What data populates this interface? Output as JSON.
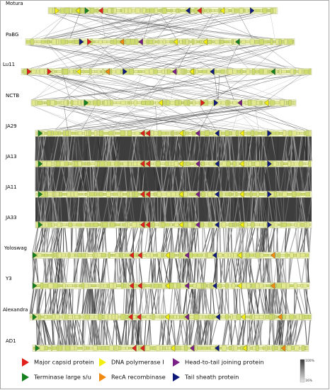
{
  "genomes": [
    {
      "label": "Motura",
      "markers": [
        {
          "pos": 0.03,
          "color": "yellow",
          "dir": "right"
        },
        {
          "pos": 0.12,
          "color": "yellow",
          "dir": "left"
        },
        {
          "pos": 0.16,
          "color": "green",
          "dir": "right"
        },
        {
          "pos": 0.22,
          "color": "red",
          "dir": "left"
        },
        {
          "pos": 0.6,
          "color": "navy",
          "dir": "left"
        },
        {
          "pos": 0.65,
          "color": "red",
          "dir": "left"
        },
        {
          "pos": 0.75,
          "color": "yellow",
          "dir": "left"
        },
        {
          "pos": 0.88,
          "color": "navy",
          "dir": "right"
        }
      ]
    },
    {
      "label": "PaBG",
      "markers": [
        {
          "pos": 0.2,
          "color": "navy",
          "dir": "right"
        },
        {
          "pos": 0.23,
          "color": "red",
          "dir": "right"
        },
        {
          "pos": 0.35,
          "color": "orange",
          "dir": "left"
        },
        {
          "pos": 0.42,
          "color": "purple",
          "dir": "left"
        },
        {
          "pos": 0.55,
          "color": "yellow",
          "dir": "left"
        },
        {
          "pos": 0.66,
          "color": "yellow",
          "dir": "left"
        },
        {
          "pos": 0.78,
          "color": "green",
          "dir": "left"
        }
      ]
    },
    {
      "label": "Lu11",
      "markers": [
        {
          "pos": 0.02,
          "color": "red",
          "dir": "right"
        },
        {
          "pos": 0.09,
          "color": "red",
          "dir": "right"
        },
        {
          "pos": 0.19,
          "color": "yellow",
          "dir": "left"
        },
        {
          "pos": 0.29,
          "color": "orange",
          "dir": "left"
        },
        {
          "pos": 0.35,
          "color": "navy",
          "dir": "right"
        },
        {
          "pos": 0.52,
          "color": "purple",
          "dir": "left"
        },
        {
          "pos": 0.58,
          "color": "yellow",
          "dir": "left"
        },
        {
          "pos": 0.65,
          "color": "navy",
          "dir": "left"
        },
        {
          "pos": 0.86,
          "color": "green",
          "dir": "left"
        }
      ]
    },
    {
      "label": "NCTB",
      "markers": [
        {
          "pos": 0.2,
          "color": "green",
          "dir": "right"
        },
        {
          "pos": 0.48,
          "color": "yellow",
          "dir": "left"
        },
        {
          "pos": 0.64,
          "color": "red",
          "dir": "right"
        },
        {
          "pos": 0.69,
          "color": "navy",
          "dir": "right"
        },
        {
          "pos": 0.78,
          "color": "purple",
          "dir": "left"
        },
        {
          "pos": 0.88,
          "color": "yellow",
          "dir": "left"
        }
      ]
    },
    {
      "label": "JA29",
      "markers": [
        {
          "pos": 0.01,
          "color": "green",
          "dir": "right"
        },
        {
          "pos": 0.38,
          "color": "red",
          "dir": "left"
        },
        {
          "pos": 0.4,
          "color": "red",
          "dir": "left"
        },
        {
          "pos": 0.52,
          "color": "yellow",
          "dir": "left"
        },
        {
          "pos": 0.58,
          "color": "purple",
          "dir": "left"
        },
        {
          "pos": 0.65,
          "color": "navy",
          "dir": "left"
        },
        {
          "pos": 0.74,
          "color": "yellow",
          "dir": "left"
        },
        {
          "pos": 0.84,
          "color": "navy",
          "dir": "right"
        }
      ]
    },
    {
      "label": "JA13",
      "markers": [
        {
          "pos": 0.01,
          "color": "green",
          "dir": "right"
        },
        {
          "pos": 0.38,
          "color": "red",
          "dir": "left"
        },
        {
          "pos": 0.4,
          "color": "red",
          "dir": "left"
        },
        {
          "pos": 0.52,
          "color": "yellow",
          "dir": "left"
        },
        {
          "pos": 0.58,
          "color": "purple",
          "dir": "left"
        },
        {
          "pos": 0.65,
          "color": "navy",
          "dir": "left"
        },
        {
          "pos": 0.74,
          "color": "yellow",
          "dir": "left"
        },
        {
          "pos": 0.84,
          "color": "navy",
          "dir": "right"
        }
      ]
    },
    {
      "label": "JA11",
      "markers": [
        {
          "pos": 0.01,
          "color": "green",
          "dir": "right"
        },
        {
          "pos": 0.38,
          "color": "red",
          "dir": "left"
        },
        {
          "pos": 0.4,
          "color": "red",
          "dir": "left"
        },
        {
          "pos": 0.52,
          "color": "yellow",
          "dir": "left"
        },
        {
          "pos": 0.58,
          "color": "purple",
          "dir": "left"
        },
        {
          "pos": 0.65,
          "color": "navy",
          "dir": "left"
        },
        {
          "pos": 0.74,
          "color": "yellow",
          "dir": "left"
        },
        {
          "pos": 0.84,
          "color": "navy",
          "dir": "right"
        }
      ]
    },
    {
      "label": "JA33",
      "markers": [
        {
          "pos": 0.01,
          "color": "green",
          "dir": "right"
        },
        {
          "pos": 0.38,
          "color": "red",
          "dir": "left"
        },
        {
          "pos": 0.4,
          "color": "red",
          "dir": "left"
        },
        {
          "pos": 0.52,
          "color": "yellow",
          "dir": "left"
        },
        {
          "pos": 0.58,
          "color": "purple",
          "dir": "left"
        },
        {
          "pos": 0.65,
          "color": "navy",
          "dir": "left"
        },
        {
          "pos": 0.74,
          "color": "yellow",
          "dir": "left"
        },
        {
          "pos": 0.84,
          "color": "navy",
          "dir": "right"
        }
      ]
    },
    {
      "label": "Yoloswag",
      "markers": [
        {
          "pos": 0.0,
          "color": "green",
          "dir": "right"
        },
        {
          "pos": 0.35,
          "color": "red",
          "dir": "left"
        },
        {
          "pos": 0.38,
          "color": "red",
          "dir": "left"
        },
        {
          "pos": 0.48,
          "color": "yellow",
          "dir": "left"
        },
        {
          "pos": 0.55,
          "color": "purple",
          "dir": "left"
        },
        {
          "pos": 0.65,
          "color": "navy",
          "dir": "left"
        },
        {
          "pos": 0.74,
          "color": "yellow",
          "dir": "left"
        },
        {
          "pos": 0.86,
          "color": "orange",
          "dir": "left"
        }
      ]
    },
    {
      "label": "Y3",
      "markers": [
        {
          "pos": 0.0,
          "color": "green",
          "dir": "right"
        },
        {
          "pos": 0.35,
          "color": "red",
          "dir": "left"
        },
        {
          "pos": 0.38,
          "color": "red",
          "dir": "left"
        },
        {
          "pos": 0.48,
          "color": "yellow",
          "dir": "left"
        },
        {
          "pos": 0.55,
          "color": "purple",
          "dir": "left"
        },
        {
          "pos": 0.65,
          "color": "navy",
          "dir": "left"
        },
        {
          "pos": 0.74,
          "color": "yellow",
          "dir": "left"
        },
        {
          "pos": 0.86,
          "color": "orange",
          "dir": "left"
        }
      ]
    },
    {
      "label": "Alexandra",
      "markers": [
        {
          "pos": 0.01,
          "color": "green",
          "dir": "right"
        },
        {
          "pos": 0.35,
          "color": "red",
          "dir": "left"
        },
        {
          "pos": 0.38,
          "color": "red",
          "dir": "left"
        },
        {
          "pos": 0.48,
          "color": "yellow",
          "dir": "left"
        },
        {
          "pos": 0.55,
          "color": "purple",
          "dir": "left"
        },
        {
          "pos": 0.66,
          "color": "navy",
          "dir": "left"
        },
        {
          "pos": 0.75,
          "color": "yellow",
          "dir": "left"
        },
        {
          "pos": 0.88,
          "color": "orange",
          "dir": "left"
        }
      ]
    },
    {
      "label": "AD1",
      "markers": [
        {
          "pos": 0.01,
          "color": "green",
          "dir": "right"
        },
        {
          "pos": 0.36,
          "color": "red",
          "dir": "left"
        },
        {
          "pos": 0.39,
          "color": "red",
          "dir": "left"
        },
        {
          "pos": 0.5,
          "color": "yellow",
          "dir": "left"
        },
        {
          "pos": 0.57,
          "color": "purple",
          "dir": "left"
        },
        {
          "pos": 0.66,
          "color": "navy",
          "dir": "left"
        },
        {
          "pos": 0.76,
          "color": "yellow",
          "dir": "left"
        },
        {
          "pos": 0.9,
          "color": "orange",
          "dir": "left"
        }
      ]
    }
  ],
  "legend": [
    {
      "label": "Major capsid protein",
      "color": "#e0201a"
    },
    {
      "label": "DNA polymerase I",
      "color": "#f2ee10"
    },
    {
      "label": "Head-to-tail joining protein",
      "color": "#7a1f86"
    },
    {
      "label": "Terminase large s/u",
      "color": "#15801e"
    },
    {
      "label": "RecA recombinase",
      "color": "#f08a10"
    },
    {
      "label": "Tail sheath protein",
      "color": "#101a7a"
    }
  ],
  "scale": {
    "max_label": "100%",
    "min_label": "16%"
  },
  "colors": {
    "red": "#e0201a",
    "yellow": "#f2ee10",
    "purple": "#7a1f86",
    "green": "#15801e",
    "orange": "#f08a10",
    "navy": "#101a7a",
    "track": "#f2f5c6",
    "gene": "#cddc6c"
  }
}
